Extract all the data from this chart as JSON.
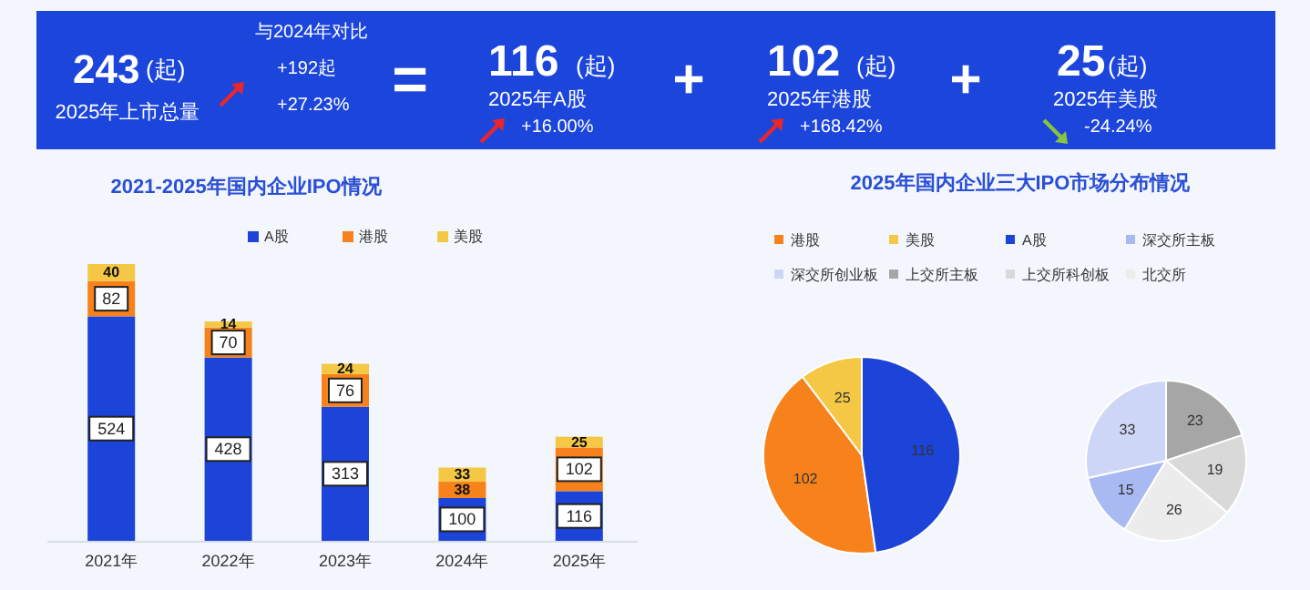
{
  "chart_data": [
    {
      "type": "other",
      "annotations": [
        "243",
        "(起)",
        "2025年上市总量",
        "与2024年对比",
        "+192起",
        "+27.23%",
        "=",
        "116",
        "(起)",
        "2025年A股",
        "+16.00%",
        "+",
        "102",
        "(起)",
        "2025年港股",
        "+168.42%",
        "+",
        "25",
        "(起)",
        "2025年美股",
        "-24.24%"
      ]
    },
    {
      "type": "bar",
      "title": "2021-2025年国内企业IPO情况",
      "stacked": true,
      "data_labels": true,
      "legend": "top",
      "categories": [
        "2021年",
        "2022年",
        "2023年",
        "2024年",
        "2025年"
      ],
      "series": [
        {
          "name": "A股",
          "color": "#1d44d9",
          "values": [
            524,
            428,
            313,
            100,
            116
          ]
        },
        {
          "name": "港股",
          "color": "#f7821b",
          "values": [
            82,
            70,
            76,
            38,
            102
          ]
        },
        {
          "name": "美股",
          "color": "#f4c845",
          "values": [
            40,
            14,
            24,
            33,
            25
          ]
        }
      ]
    },
    {
      "type": "pie",
      "title": "2025年国内企业三大IPO市场分布情况",
      "legend": "top",
      "data_labels": true,
      "categories": [
        "港股",
        "美股",
        "A股"
      ],
      "values": [
        102,
        25,
        116
      ],
      "colors": [
        "#f7821b",
        "#f4c845",
        "#1d44d9"
      ]
    },
    {
      "type": "pie",
      "legend": "top",
      "data_labels": true,
      "categories": [
        "深交所主板",
        "深交所创业板",
        "上交所主板",
        "上交所科创板",
        "北交所"
      ],
      "values": [
        15,
        33,
        23,
        19,
        26
      ],
      "colors": [
        "#a9b9f2",
        "#cdd6f6",
        "#a6a6a6",
        "#d9d9d9",
        "#ececec"
      ]
    }
  ]
}
